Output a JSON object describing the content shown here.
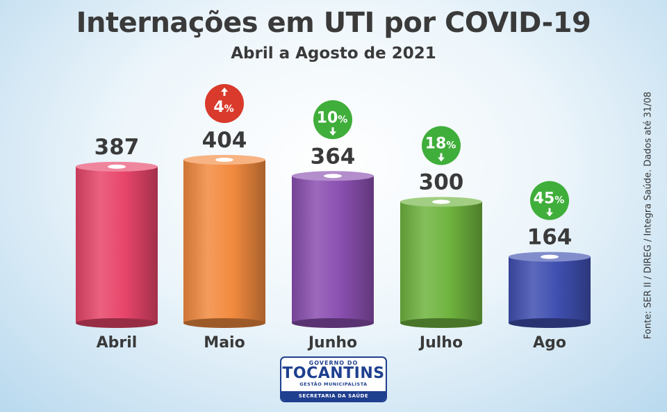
{
  "chart_data": {
    "type": "bar",
    "title": "Internações em UTI por COVID-19",
    "subtitle": "Abril a Agosto de 2021",
    "categories": [
      "Abril",
      "Maio",
      "Junho",
      "Julho",
      "Ago"
    ],
    "values": [
      387,
      404,
      364,
      300,
      164
    ],
    "value_labels": [
      "387",
      "404",
      "364",
      "300",
      "164"
    ],
    "changes": [
      null,
      {
        "value": "4",
        "unit": "%",
        "direction": "up"
      },
      {
        "value": "10",
        "unit": "%",
        "direction": "down"
      },
      {
        "value": "18",
        "unit": "%",
        "direction": "down"
      },
      {
        "value": "45",
        "unit": "%",
        "direction": "down"
      }
    ],
    "colors": [
      "#e8456a",
      "#f28a3f",
      "#8a4fb0",
      "#6fb43f",
      "#3f4fb0"
    ],
    "change_colors": {
      "up": "#d93a2b",
      "down": "#3fae3a"
    },
    "grid": false,
    "legend": "none",
    "ylim": [
      0,
      404
    ]
  },
  "source_note": "Fonte: SER II / DIREG / Integra Saúde. Dados até 31/08",
  "logo": {
    "line1": "GOVERNO DO",
    "line2": "TOCANTINS",
    "line3": "GESTÃO MUNICIPALISTA",
    "line4": "SECRETARIA DA SAÚDE"
  }
}
